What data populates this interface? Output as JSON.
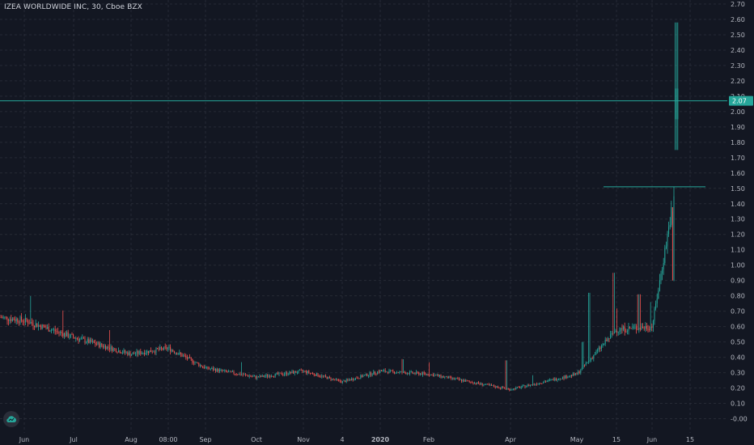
{
  "chart_title": "IZEA WORLDWIDE INC, 30, Cboe BZX",
  "logo_icon": "tradingview-cloud-icon",
  "colors": {
    "background": "#131722",
    "grid": "#363a45",
    "up": "#26a69a",
    "down": "#ef5350",
    "text": "#b2b5be",
    "hline": "#26a69a",
    "price_badge": "#26a69a"
  },
  "chart_data": {
    "type": "candlestick",
    "title": "IZEA WORLDWIDE INC, 30, Cboe BZX",
    "ylim": [
      -0.05,
      2.7
    ],
    "y_ticks": [
      "-0.00",
      "0.10",
      "0.20",
      "0.30",
      "0.40",
      "0.50",
      "0.60",
      "0.70",
      "0.80",
      "0.90",
      "1.00",
      "1.10",
      "1.20",
      "1.30",
      "1.40",
      "1.50",
      "1.60",
      "1.70",
      "1.80",
      "1.90",
      "2.00",
      "2.10",
      "2.20",
      "2.30",
      "2.40",
      "2.50",
      "2.60",
      "2.70"
    ],
    "x_ticks": [
      "Jun",
      "Jul",
      "Aug",
      "08:00",
      "Sep",
      "Oct",
      "Nov",
      "4",
      "2020",
      "Feb",
      "Apr",
      "May",
      "15",
      "Jun",
      "15"
    ],
    "last_price": "2.07",
    "grid": true,
    "horizontal_lines": [
      {
        "price": 2.07,
        "from": "start",
        "to": "end"
      },
      {
        "price": 1.51,
        "from": "May",
        "to": "15"
      }
    ],
    "price_path": [
      {
        "x": "Jun",
        "y": 0.64
      },
      {
        "x": "Jul",
        "y": 0.53
      },
      {
        "x": "Aug",
        "y": 0.42
      },
      {
        "x": "08:00",
        "y": 0.46
      },
      {
        "x": "Sep",
        "y": 0.33
      },
      {
        "x": "Oct",
        "y": 0.27
      },
      {
        "x": "Nov",
        "y": 0.31
      },
      {
        "x": "4",
        "y": 0.24
      },
      {
        "x": "2020",
        "y": 0.31
      },
      {
        "x": "Feb",
        "y": 0.29
      },
      {
        "x": "Apr",
        "y": 0.19
      },
      {
        "x": "May",
        "y": 0.29
      },
      {
        "x": "15",
        "y": 0.58
      },
      {
        "x": "Jun",
        "y": 0.6
      },
      {
        "x": "15",
        "y": 2.07
      }
    ]
  }
}
